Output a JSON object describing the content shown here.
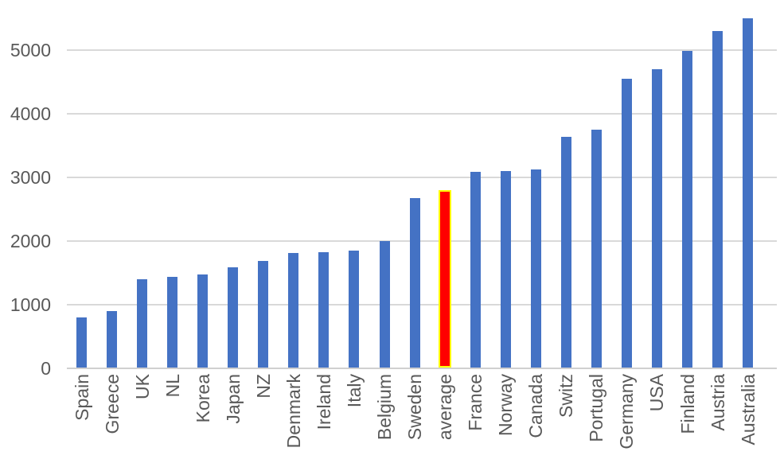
{
  "chart_data": {
    "type": "bar",
    "title": "",
    "xlabel": "",
    "ylabel": "",
    "categories": [
      "Spain",
      "Greece",
      "UK",
      "NL",
      "Korea",
      "Japan",
      "NZ",
      "Denmark",
      "Ireland",
      "Italy",
      "Belgium",
      "Sweden",
      "average",
      "France",
      "Norway",
      "Canada",
      "Switz",
      "Portugal",
      "Germany",
      "USA",
      "Finland",
      "Austria",
      "Australia"
    ],
    "values": [
      800,
      900,
      1390,
      1435,
      1465,
      1580,
      1680,
      1810,
      1815,
      1840,
      2000,
      2670,
      2770,
      3080,
      3100,
      3120,
      3630,
      3745,
      4540,
      4690,
      4985,
      5290,
      5500
    ],
    "y_ticks": [
      0,
      1000,
      2000,
      3000,
      4000,
      5000
    ],
    "y_tick_labels": [
      "0",
      "1000",
      "2000",
      "3000",
      "4000",
      "5000"
    ],
    "ylim": [
      0,
      5500
    ],
    "grid": true,
    "legend": false,
    "bar_color": "#4472C4",
    "highlight": {
      "category": "average",
      "fill": "#FF0000",
      "border": "#FFFF00"
    },
    "axis_text_color": "#595959",
    "gridline_color": "#D9D9D9",
    "axis_line_color": "#D0D0D0"
  }
}
